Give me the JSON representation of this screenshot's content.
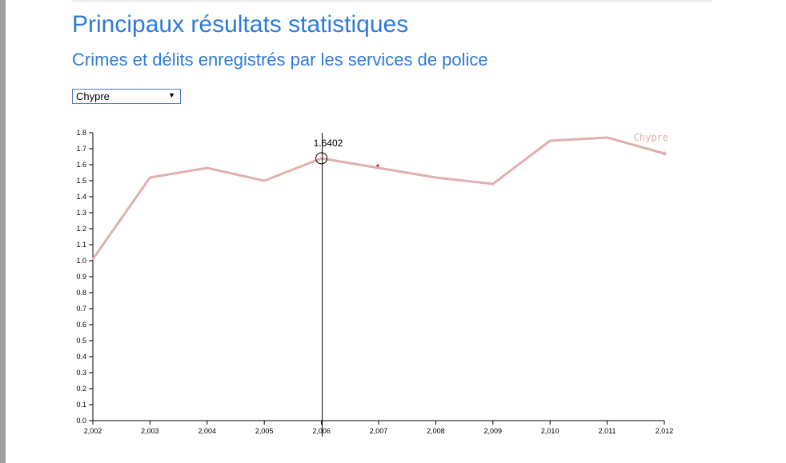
{
  "page": {
    "title": "Principaux résultats statistiques",
    "subtitle": "Crimes et délits enregistrés par les services de police"
  },
  "country_select": {
    "selected": "Chypre",
    "caret_icon": "triangle-down-icon"
  },
  "tooltip": {
    "value_label": "1.6402"
  },
  "colors": {
    "title": "#2f7ad8",
    "series_line": "#e0b0ae",
    "series_label": "#e0b0ae",
    "marker": "#d12020",
    "crosshair": "#000000"
  },
  "chart_data": {
    "type": "line",
    "title": "",
    "xlabel": "",
    "ylabel": "",
    "x": [
      2002,
      2003,
      2004,
      2005,
      2006,
      2007,
      2008,
      2009,
      2010,
      2011,
      2012
    ],
    "x_tick_labels": [
      "2,002",
      "2,003",
      "2,004",
      "2,005",
      "2,006",
      "2,007",
      "2,008",
      "2,009",
      "2,010",
      "2,011",
      "2,012"
    ],
    "y_tick_labels": [
      "0.0",
      "0.1",
      "0.2",
      "0.3",
      "0.4",
      "0.5",
      "0.6",
      "0.7",
      "0.8",
      "0.9",
      "1.0",
      "1.1",
      "1.2",
      "1.3",
      "1.4",
      "1.5",
      "1.6",
      "1.7",
      "1.8"
    ],
    "ylim": [
      0,
      1.8
    ],
    "grid": false,
    "series": [
      {
        "name": "Chypre",
        "values": [
          1.01,
          1.52,
          1.58,
          1.5,
          1.64,
          1.58,
          1.52,
          1.48,
          1.75,
          1.77,
          1.67
        ]
      }
    ],
    "highlight": {
      "x": 2006,
      "y": 1.6402,
      "label": "1.6402"
    },
    "hover_marker": {
      "x": 2007,
      "y": 1.6
    }
  }
}
